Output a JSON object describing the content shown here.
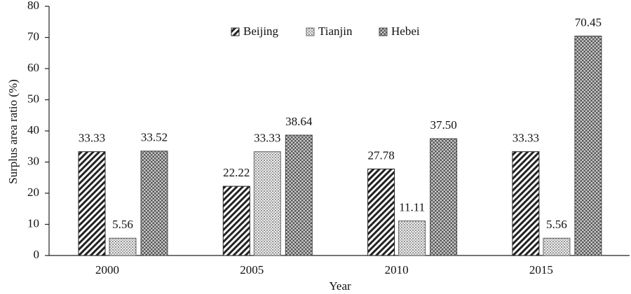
{
  "chart_data": {
    "type": "bar",
    "x_label": "Year",
    "y_label": "Surplus area ratio (%)",
    "categories": [
      "2000",
      "2005",
      "2010",
      "2015"
    ],
    "series": [
      {
        "name": "Beijing",
        "color": "#222222",
        "pattern": "diagonal",
        "values": [
          33.33,
          22.22,
          27.78,
          33.33
        ],
        "value_labels": [
          "33.33",
          "22.22",
          "27.78",
          "33.33"
        ]
      },
      {
        "name": "Tianjin",
        "color": "#666666",
        "pattern": "dots",
        "values": [
          5.56,
          33.33,
          11.11,
          5.56
        ],
        "value_labels": [
          "5.56",
          "33.33",
          "11.11",
          "5.56"
        ]
      },
      {
        "name": "Hebei",
        "color": "#444444",
        "pattern": "checker",
        "values": [
          33.52,
          38.64,
          37.5,
          70.45
        ],
        "value_labels": [
          "33.52",
          "38.64",
          "37.50",
          "70.45"
        ]
      }
    ],
    "ylim": [
      0,
      80
    ],
    "yticks": [
      0,
      10,
      20,
      30,
      40,
      50,
      60,
      70,
      80
    ],
    "grid": false,
    "legend": "top"
  }
}
